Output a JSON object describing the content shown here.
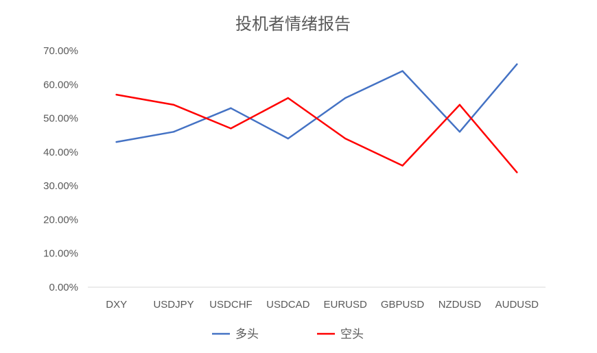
{
  "chart_data": {
    "type": "line",
    "title": "投机者情绪报告",
    "xlabel": "",
    "ylabel": "",
    "categories": [
      "DXY",
      "USDJPY",
      "USDCHF",
      "USDCAD",
      "EURUSD",
      "GBPUSD",
      "NZDUSD",
      "AUDUSD"
    ],
    "ylim": [
      0,
      70
    ],
    "y_ticks": [
      0,
      10,
      20,
      30,
      40,
      50,
      60,
      70
    ],
    "y_tick_labels": [
      "0.00%",
      "10.00%",
      "20.00%",
      "30.00%",
      "40.00%",
      "50.00%",
      "60.00%",
      "70.00%"
    ],
    "grid": false,
    "legend_position": "bottom",
    "series": [
      {
        "name": "多头",
        "color": "#4472C4",
        "values": [
          43,
          46,
          53,
          44,
          56,
          64,
          46,
          66
        ]
      },
      {
        "name": "空头",
        "color": "#FF0000",
        "values": [
          57,
          54,
          47,
          56,
          44,
          36,
          54,
          34
        ]
      }
    ]
  }
}
